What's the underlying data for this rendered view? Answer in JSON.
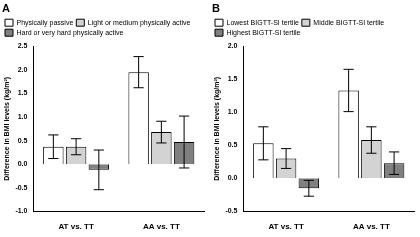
{
  "chart_data": [
    {
      "type": "bar",
      "title": "A",
      "ylabel": "Difference in BMI levels (kg/m²)",
      "categories": [
        "AT vs. TT",
        "AA vs. TT"
      ],
      "series": [
        {
          "name": "Physically passive",
          "color": "#ffffff",
          "values": [
            0.37,
            1.95
          ],
          "errors": [
            0.25,
            0.33
          ]
        },
        {
          "name": "Light or medium physically active",
          "color": "#d3d3d3",
          "values": [
            0.37,
            0.68
          ],
          "errors": [
            0.17,
            0.23
          ]
        },
        {
          "name": "Hard or very hard physically active",
          "color": "#808080",
          "values": [
            -0.12,
            0.47
          ],
          "errors": [
            0.42,
            0.55
          ]
        }
      ],
      "ylim": [
        -1,
        2.5
      ],
      "yticks": [
        {
          "value": -1,
          "label": "-1.0"
        },
        {
          "value": -0.5,
          "label": "-0.5"
        },
        {
          "value": 0,
          "label": "0.0"
        },
        {
          "value": 0.5,
          "label": "0.5"
        },
        {
          "value": 1,
          "label": "1.0"
        },
        {
          "value": 1.5,
          "label": "1.5"
        },
        {
          "value": 2,
          "label": "2.0"
        },
        {
          "value": 2.5,
          "label": "2.5"
        }
      ],
      "grid": false,
      "legend": "upper left"
    },
    {
      "type": "bar",
      "title": "B",
      "ylabel": "Difference in BMI levels (kg/m²)",
      "categories": [
        "AT vs. TT",
        "AA vs. TT"
      ],
      "series": [
        {
          "name": "Lowest BIGTT-SI tertile",
          "color": "#ffffff",
          "values": [
            0.53,
            1.33
          ],
          "errors": [
            0.25,
            0.32
          ]
        },
        {
          "name": "Middle BIGTT-SI tertile",
          "color": "#d3d3d3",
          "values": [
            0.3,
            0.58
          ],
          "errors": [
            0.15,
            0.2
          ]
        },
        {
          "name": "Highest BIGTT-SI tertile",
          "color": "#808080",
          "values": [
            -0.15,
            0.23
          ],
          "errors": [
            0.12,
            0.17
          ]
        }
      ],
      "ylim": [
        -0.5,
        2
      ],
      "yticks": [
        {
          "value": -0.5,
          "label": "-0.5"
        },
        {
          "value": 0,
          "label": "0.0"
        },
        {
          "value": 0.5,
          "label": "0.5"
        },
        {
          "value": 1,
          "label": "1.0"
        },
        {
          "value": 1.5,
          "label": "1.5"
        },
        {
          "value": 2,
          "label": "2.0"
        }
      ],
      "grid": false,
      "legend": "upper left"
    }
  ]
}
